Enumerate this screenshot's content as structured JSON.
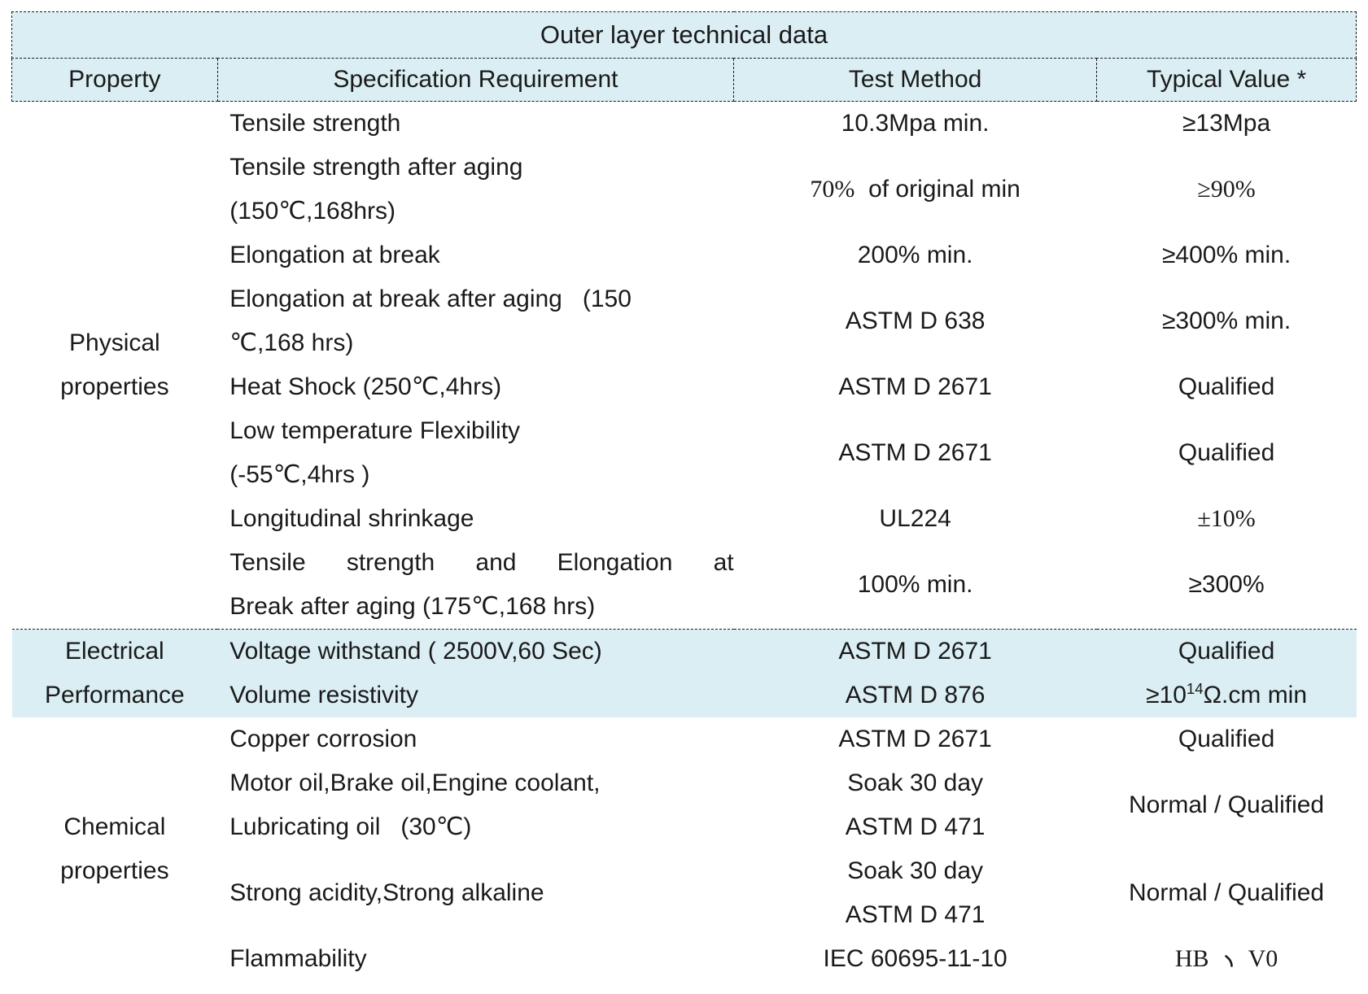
{
  "title": "Outer layer technical data",
  "columns": [
    "Property",
    "Specification Requirement",
    "Test Method",
    "Typical Value *"
  ],
  "colors": {
    "header_bg": "#daeef3",
    "highlight_row_bg": "#daeef3",
    "border": "#1a1a1a",
    "text": "#1a1a1a",
    "page_bg": "#ffffff"
  },
  "groups": [
    {
      "property": "Physical\nproperties",
      "highlight": false,
      "rows": [
        {
          "h": 1,
          "spec": "Tensile strength",
          "method": "10.3Mpa min.",
          "typical": "≥13Mpa"
        },
        {
          "h": 2,
          "spec": "Tensile strength after aging\n(150℃,168hrs)",
          "method": [
            {
              "t": "70%",
              "serif": true
            },
            {
              "t": "  of original min"
            }
          ],
          "typical": [
            {
              "t": "≥90%",
              "serif": true
            }
          ]
        },
        {
          "h": 1,
          "spec": "Elongation at break",
          "method": "200% min.",
          "typical": "≥400% min."
        },
        {
          "h": 2,
          "spec": "Elongation at break after aging   (150\n℃,168 hrs)",
          "method": "ASTM D 638",
          "typical": "≥300% min."
        },
        {
          "h": 1,
          "spec": "Heat Shock (250℃,4hrs)",
          "method": "ASTM D 2671",
          "typical": "Qualified"
        },
        {
          "h": 2,
          "spec": "Low temperature Flexibility\n(-55℃,4hrs )",
          "method": "ASTM D 2671",
          "typical": "Qualified"
        },
        {
          "h": 1,
          "spec": "Longitudinal shrinkage",
          "method": "UL224",
          "typical": [
            {
              "t": "±10%",
              "serif": true
            }
          ]
        },
        {
          "h": 2,
          "spec": [
            {
              "t": "Tensile strength and Elongation at",
              "line": "justify"
            },
            {
              "t": "Break after aging (175℃,168 hrs)",
              "line": "block"
            }
          ],
          "method": "100% min.",
          "typical": "≥300%"
        }
      ]
    },
    {
      "property": "Electrical\nPerformance",
      "highlight": true,
      "rows": [
        {
          "h": 1,
          "spec": "Voltage withstand ( 2500V,60 Sec)",
          "method": "ASTM D 2671",
          "typical": "Qualified"
        },
        {
          "h": 1,
          "spec": "Volume resistivity",
          "method": "ASTM D 876",
          "typical": [
            {
              "t": "≥10"
            },
            {
              "t": "14",
              "sup": true
            },
            {
              "t": "Ω.cm min"
            }
          ]
        }
      ]
    },
    {
      "property": "Chemical\nproperties",
      "highlight": false,
      "rows": [
        {
          "h": 1,
          "spec": "Copper corrosion",
          "method": "ASTM D 2671",
          "typical": "Qualified"
        },
        {
          "h": 2,
          "spec": "Motor oil,Brake oil,Engine coolant,\nLubricating oil   (30℃)",
          "method": "Soak 30 day\nASTM D 471",
          "typical": "Normal / Qualified"
        },
        {
          "h": 2,
          "spec": "Strong acidity,Strong alkaline",
          "method": "Soak 30 day\nASTM D 471",
          "typical": "Normal / Qualified"
        },
        {
          "h": 1,
          "spec": "Flammability",
          "method": "IEC 60695-11-10",
          "typical": [
            {
              "t": "HB",
              "serif": true
            },
            {
              "t": "、",
              "sep": true
            },
            {
              "t": "V0",
              "serif": true
            }
          ]
        }
      ]
    }
  ]
}
